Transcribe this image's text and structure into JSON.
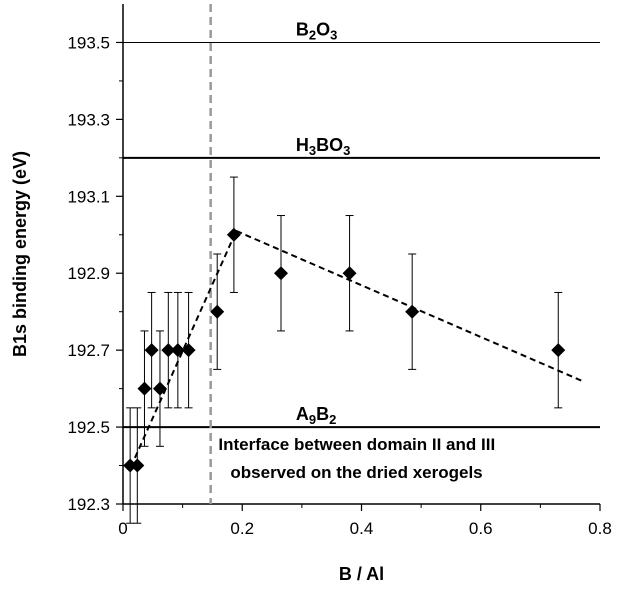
{
  "chart_data": {
    "type": "scatter",
    "xlabel": "B / Al",
    "ylabel": "B1s binding energy (eV)",
    "xlim": [
      0,
      0.8
    ],
    "ylim": [
      192.3,
      193.6
    ],
    "x_ticks": [
      {
        "value": 0,
        "label": "0"
      },
      {
        "value": 0.2,
        "label": "0.2"
      },
      {
        "value": 0.4,
        "label": "0.4"
      },
      {
        "value": 0.6,
        "label": "0.6"
      },
      {
        "value": 0.8,
        "label": "0.8"
      }
    ],
    "y_ticks": [
      {
        "value": 192.3,
        "label": "192.3"
      },
      {
        "value": 192.5,
        "label": "192.5"
      },
      {
        "value": 192.7,
        "label": "192.7"
      },
      {
        "value": 192.9,
        "label": "192.9"
      },
      {
        "value": 193.1,
        "label": "193.1"
      },
      {
        "value": 193.3,
        "label": "193.3"
      },
      {
        "value": 193.5,
        "label": "193.5"
      }
    ],
    "grid": false,
    "marker": "diamond",
    "series": [
      {
        "points": [
          {
            "x": 0.012,
            "y": 192.4,
            "err": 0.15
          },
          {
            "x": 0.024,
            "y": 192.4,
            "err": 0.15
          },
          {
            "x": 0.036,
            "y": 192.6,
            "err": 0.15
          },
          {
            "x": 0.048,
            "y": 192.7,
            "err": 0.15
          },
          {
            "x": 0.062,
            "y": 192.6,
            "err": 0.15
          },
          {
            "x": 0.076,
            "y": 192.7,
            "err": 0.15
          },
          {
            "x": 0.092,
            "y": 192.7,
            "err": 0.15
          },
          {
            "x": 0.11,
            "y": 192.7,
            "err": 0.15
          },
          {
            "x": 0.158,
            "y": 192.8,
            "err": 0.15
          },
          {
            "x": 0.186,
            "y": 193.0,
            "err": 0.15
          },
          {
            "x": 0.265,
            "y": 192.9,
            "err": 0.15
          },
          {
            "x": 0.38,
            "y": 192.9,
            "err": 0.15
          },
          {
            "x": 0.485,
            "y": 192.8,
            "err": 0.15
          },
          {
            "x": 0.73,
            "y": 192.7,
            "err": 0.15
          }
        ]
      }
    ],
    "trend_lines": [
      {
        "points": [
          [
            0.02,
            192.42
          ],
          [
            0.19,
            193.01
          ]
        ]
      },
      {
        "points": [
          [
            0.19,
            193.01
          ],
          [
            0.77,
            192.62
          ]
        ]
      }
    ],
    "reference_lines": [
      {
        "label_parts": [
          [
            "B",
            ""
          ],
          [
            "2",
            "sub"
          ],
          [
            "O",
            ""
          ],
          [
            "3",
            "sub"
          ]
        ],
        "y": 193.5,
        "label_x": 0.29,
        "weight": "thin"
      },
      {
        "label_parts": [
          [
            "H",
            ""
          ],
          [
            "3",
            "sub"
          ],
          [
            "BO",
            ""
          ],
          [
            "3",
            "sub"
          ]
        ],
        "y": 193.2,
        "label_x": 0.29,
        "weight": "bold"
      },
      {
        "label_parts": [
          [
            "A",
            ""
          ],
          [
            "9",
            "sub"
          ],
          [
            "B",
            ""
          ],
          [
            "2",
            "sub"
          ]
        ],
        "y": 192.5,
        "label_x": 0.29,
        "weight": "bold"
      }
    ],
    "vertical_marker": {
      "x": 0.147,
      "style": "dashed",
      "color": "#999999"
    },
    "annotation": {
      "lines": [
        "Interface between domain II and III",
        "observed on the dried xerogels"
      ],
      "x": 0.16,
      "y": 192.44
    }
  }
}
